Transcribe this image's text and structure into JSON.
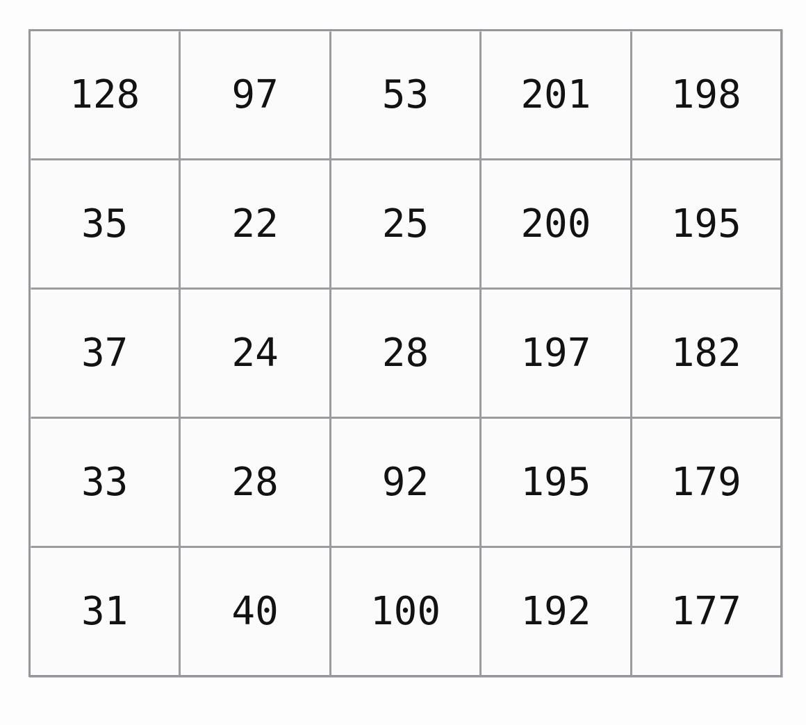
{
  "chart_data": {
    "type": "table",
    "title": "",
    "rows": [
      [
        "128",
        "97",
        "53",
        "201",
        "198"
      ],
      [
        "35",
        "22",
        "25",
        "200",
        "195"
      ],
      [
        "37",
        "24",
        "28",
        "197",
        "182"
      ],
      [
        "33",
        "28",
        "92",
        "195",
        "179"
      ],
      [
        "31",
        "40",
        "100",
        "192",
        "177"
      ]
    ],
    "num_rows": 5,
    "num_cols": 5,
    "colors": {
      "grid_line": "#9b9ba0",
      "cell_background": "#fbfbfc",
      "text": "#121212",
      "page_background": "#fdfdfe"
    }
  }
}
